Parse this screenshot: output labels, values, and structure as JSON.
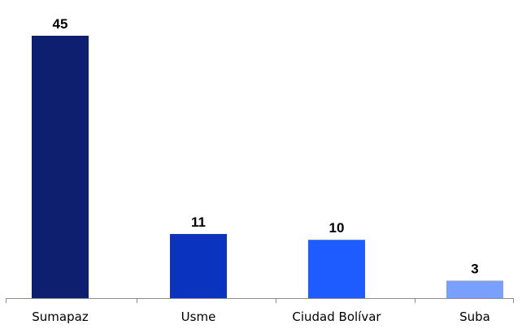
{
  "chart_data": {
    "type": "bar",
    "title": "",
    "xlabel": "",
    "ylabel": "",
    "categories": [
      "Sumapaz",
      "Usme",
      "Ciudad Bolívar",
      "Suba"
    ],
    "values": [
      45,
      11,
      10,
      3
    ],
    "colors": [
      "#0d1f6e",
      "#0a33c0",
      "#1f5cff",
      "#7aa0ff"
    ],
    "ylim": [
      0,
      45
    ],
    "grid": false,
    "legend": "none",
    "data_labels": true
  }
}
